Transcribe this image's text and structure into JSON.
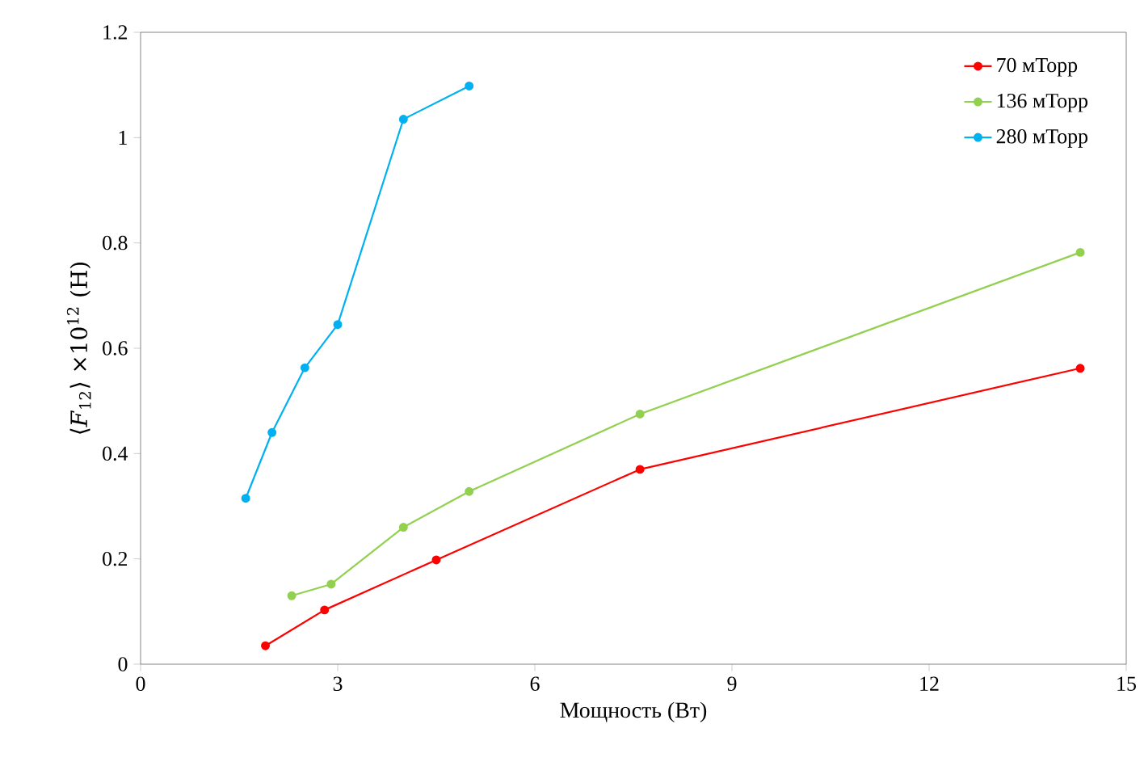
{
  "chart_data": {
    "type": "line",
    "xlabel": "Мощность (Вт)",
    "ylabel": "⟨*F*$_{12}$⟩ ×10$^{12}$ (Н)",
    "xlim": [
      0,
      15
    ],
    "xticks": [
      0,
      3,
      6,
      9,
      12,
      15
    ],
    "ylim": [
      0,
      1.2
    ],
    "yticks": [
      0,
      0.2,
      0.4,
      0.6,
      0.8,
      1,
      1.2
    ],
    "grid": false,
    "legend": "top right",
    "marker": "circle",
    "line_style": "solid",
    "series": [
      {
        "name": "70 мТорр",
        "color": "#ff0000",
        "x": [
          1.9,
          2.8,
          4.5,
          7.6,
          14.3
        ],
        "values": [
          0.035,
          0.103,
          0.198,
          0.37,
          0.562
        ]
      },
      {
        "name": "136 мТорр",
        "color": "#92d050",
        "x": [
          2.3,
          2.9,
          4.0,
          5.0,
          7.6,
          14.3
        ],
        "values": [
          0.13,
          0.152,
          0.26,
          0.328,
          0.475,
          0.782
        ]
      },
      {
        "name": "280 мТорр",
        "color": "#00b0f0",
        "x": [
          1.6,
          2.0,
          2.5,
          3.0,
          4.0,
          5.0
        ],
        "values": [
          0.315,
          0.44,
          0.563,
          0.645,
          1.035,
          1.098
        ]
      }
    ]
  }
}
